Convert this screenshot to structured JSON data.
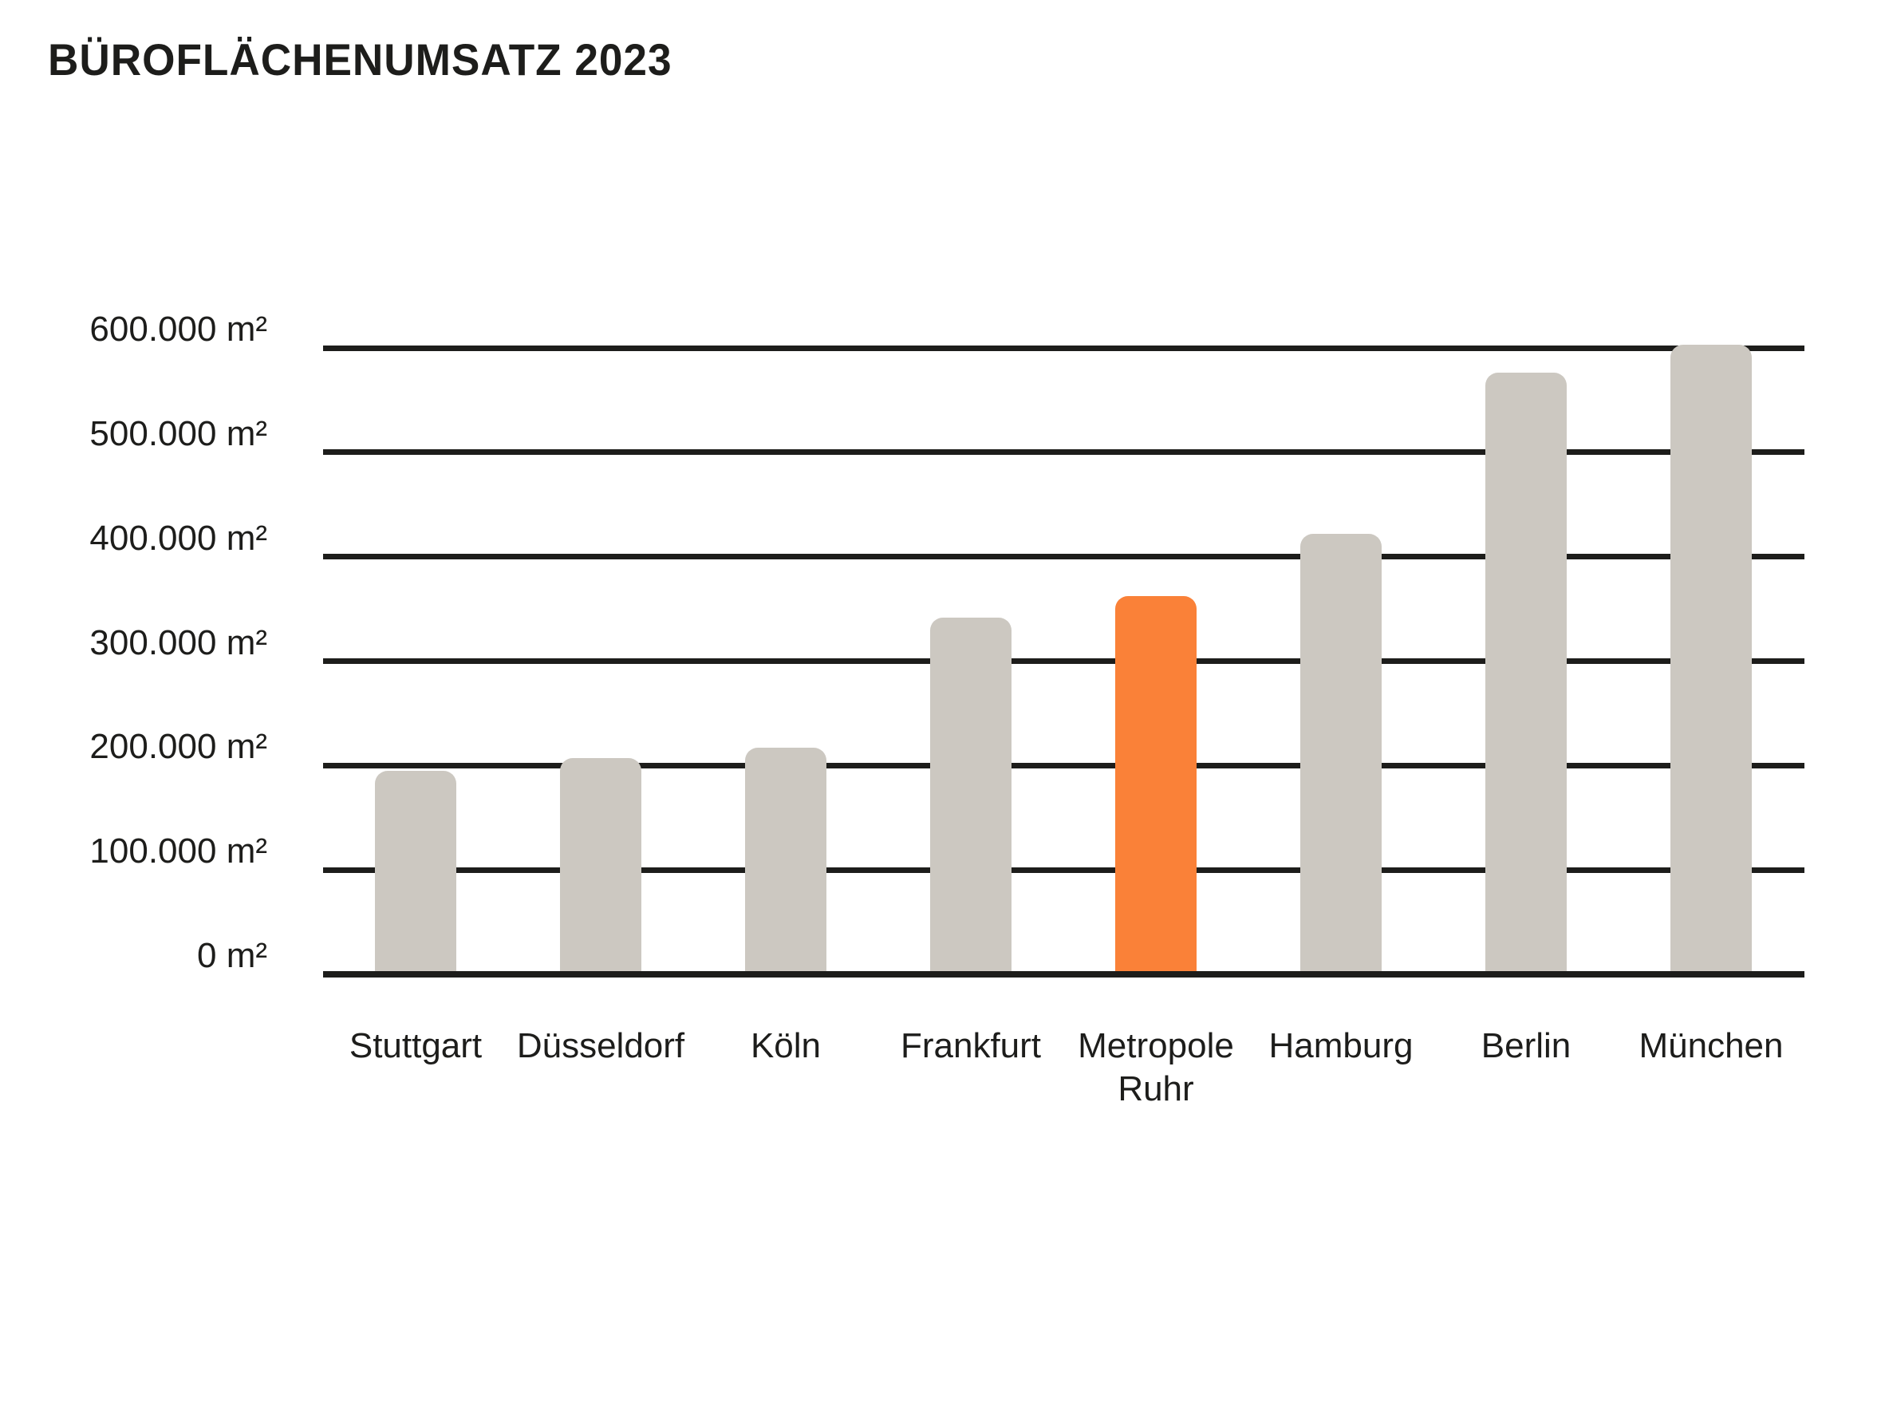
{
  "title": "BÜROFLÄCHENUMSATZ 2023",
  "chart_data": {
    "type": "bar",
    "title": "BÜROFLÄCHENUMSATZ 2023",
    "categories": [
      "Stuttgart",
      "Düsseldorf",
      "Köln",
      "Frankfurt",
      "Metropole Ruhr",
      "Hamburg",
      "Berlin",
      "München"
    ],
    "values": [
      195000,
      207000,
      217000,
      342000,
      362000,
      422000,
      576000,
      603000
    ],
    "unit": "m²",
    "xlabel": "",
    "ylabel": "",
    "ylim": [
      0,
      600000
    ],
    "ytick_step": 100000,
    "ytick_labels": [
      "0 m²",
      "100.000 m²",
      "200.000 m²",
      "300.000 m²",
      "400.000 m²",
      "500.000 m²",
      "600.000 m²"
    ],
    "highlight_category": "Metropole Ruhr",
    "grid": true,
    "legend": false,
    "colors": {
      "bar": "#ccc8c1",
      "highlight": "#fa8138",
      "grid": "#1d1d1b",
      "text": "#1d1d1b",
      "background": "#ffffff"
    }
  }
}
